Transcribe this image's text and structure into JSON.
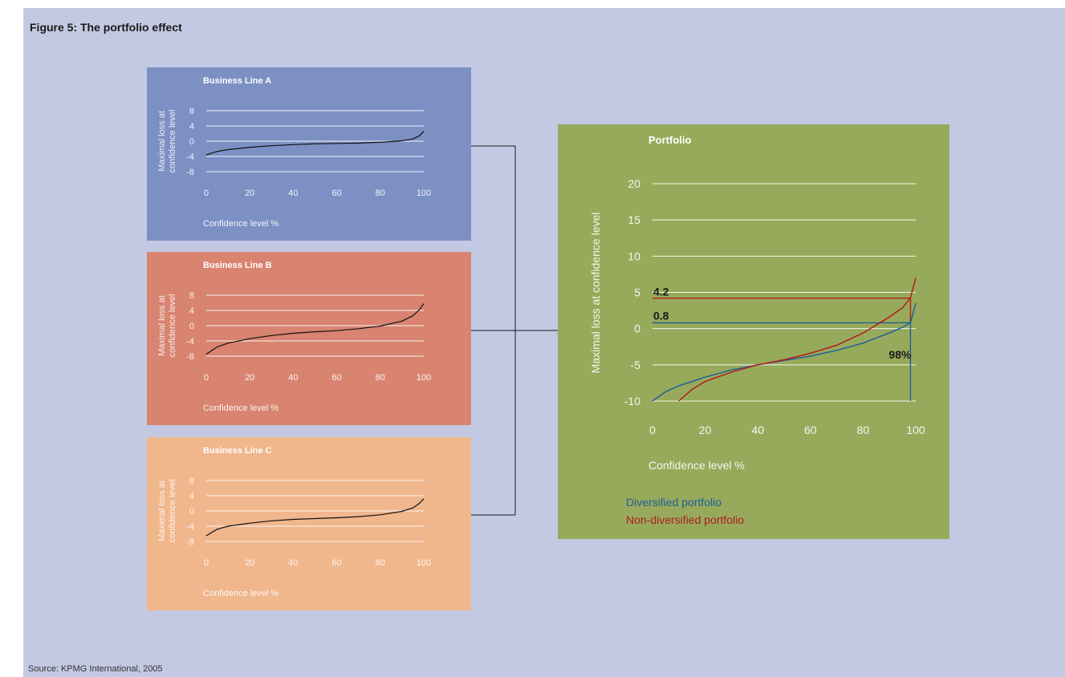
{
  "figure": {
    "title": "Figure 5: The portfolio effect",
    "source": "Source: KPMG International, 2005"
  },
  "colors": {
    "background": "#c3c9e3",
    "business_line_a": "#7c90c4",
    "business_line_b": "#d88470",
    "business_line_c": "#f0b68c",
    "portfolio": "#97aa5b",
    "diversified": "#1f5f99",
    "non_diversified": "#b01d1d"
  },
  "chart_data": [
    {
      "id": "a",
      "type": "line",
      "title": "Business Line A",
      "xlabel": "Confidence level %",
      "ylabel": "Maximal loss at confidence level",
      "ylabel_lines": [
        "Maximal loss at",
        "confidence level"
      ],
      "xticks": [
        0,
        20,
        40,
        60,
        80,
        100
      ],
      "yticks": [
        8,
        4,
        0,
        -4,
        -8
      ],
      "ytick_labels": [
        "8",
        "4",
        "0",
        "-4",
        "-8"
      ],
      "xlim": [
        0,
        100
      ],
      "ylim": [
        -8,
        8
      ],
      "grid": true,
      "series": [
        {
          "x": [
            0,
            5,
            10,
            20,
            30,
            40,
            50,
            60,
            70,
            80,
            90,
            95,
            98,
            100
          ],
          "y": [
            -3.6,
            -2.7,
            -2.2,
            -1.6,
            -1.2,
            -0.9,
            -0.7,
            -0.6,
            -0.5,
            -0.3,
            0.1,
            0.6,
            1.4,
            2.6
          ]
        }
      ]
    },
    {
      "id": "b",
      "type": "line",
      "title": "Business Line B",
      "xlabel": "Confidence level %",
      "ylabel": "Maximal loss at confidence level",
      "ylabel_lines": [
        "Maximal loss at",
        "confidence level"
      ],
      "xticks": [
        0,
        20,
        40,
        60,
        80,
        100
      ],
      "yticks": [
        8,
        4,
        0,
        -4,
        -8
      ],
      "ytick_labels": [
        "8",
        "4",
        "0",
        "-4",
        "-8"
      ],
      "xlim": [
        0,
        100
      ],
      "ylim": [
        -8,
        8
      ],
      "grid": true,
      "series": [
        {
          "x": [
            0,
            5,
            10,
            20,
            30,
            40,
            50,
            60,
            70,
            80,
            90,
            95,
            98,
            100
          ],
          "y": [
            -7.5,
            -5.6,
            -4.6,
            -3.4,
            -2.6,
            -2.0,
            -1.6,
            -1.3,
            -0.8,
            -0.1,
            1.2,
            2.6,
            4.2,
            5.8
          ]
        }
      ]
    },
    {
      "id": "c",
      "type": "line",
      "title": "Business Line C",
      "xlabel": "Confidence level %",
      "ylabel": "Maximal loss at confidence level",
      "ylabel_lines": [
        "Maximal loss at",
        "confidence level"
      ],
      "xticks": [
        0,
        20,
        40,
        60,
        80,
        100
      ],
      "yticks": [
        8,
        4,
        0,
        -4,
        -8
      ],
      "ytick_labels": [
        "8",
        "4",
        "0",
        "-4",
        "-8"
      ],
      "xlim": [
        0,
        100
      ],
      "ylim": [
        -8,
        8
      ],
      "grid": true,
      "series": [
        {
          "x": [
            0,
            5,
            10,
            20,
            30,
            40,
            50,
            60,
            70,
            80,
            90,
            95,
            98,
            100
          ],
          "y": [
            -6.5,
            -4.8,
            -4.0,
            -3.2,
            -2.6,
            -2.2,
            -2.0,
            -1.8,
            -1.5,
            -1.0,
            -0.1,
            0.8,
            2.0,
            3.2
          ]
        }
      ]
    },
    {
      "id": "portfolio",
      "type": "line",
      "title": "Portfolio",
      "xlabel": "Confidence level %",
      "ylabel": "Maximal loss at confidence level",
      "xticks": [
        0,
        20,
        40,
        60,
        80,
        100
      ],
      "yticks": [
        20,
        15,
        10,
        5,
        0,
        -5,
        -10
      ],
      "ytick_labels": [
        "20",
        "15",
        "10",
        "5",
        "0",
        "-5",
        "-10"
      ],
      "xlim": [
        0,
        100
      ],
      "ylim": [
        -10,
        20
      ],
      "grid": true,
      "legend": "bottom-left",
      "series": [
        {
          "name": "Diversified portfolio",
          "color": "#1f5f99",
          "x": [
            0,
            5,
            10,
            20,
            30,
            40,
            50,
            60,
            70,
            80,
            90,
            95,
            98,
            100
          ],
          "y": [
            -10,
            -8.7,
            -7.9,
            -6.7,
            -5.7,
            -5.0,
            -4.4,
            -3.8,
            -3.0,
            -2.0,
            -0.6,
            0.2,
            0.8,
            3.5
          ]
        },
        {
          "name": "Non-diversified portfolio",
          "color": "#b01d1d",
          "x": [
            10,
            15,
            20,
            30,
            40,
            50,
            60,
            70,
            80,
            90,
            95,
            98,
            100
          ],
          "y": [
            -10,
            -8.4,
            -7.3,
            -6.0,
            -5.0,
            -4.3,
            -3.4,
            -2.3,
            -0.6,
            1.6,
            2.9,
            4.2,
            7.0
          ]
        }
      ],
      "annotations": [
        {
          "label": "4.2",
          "value": 4.2,
          "x_end": 98,
          "color": "#b01d1d"
        },
        {
          "label": "0.8",
          "value": 0.8,
          "x_end": 98,
          "color": "#1f5f99"
        },
        {
          "label": "98%",
          "x": 98,
          "color": "#1f5f99"
        }
      ]
    }
  ]
}
